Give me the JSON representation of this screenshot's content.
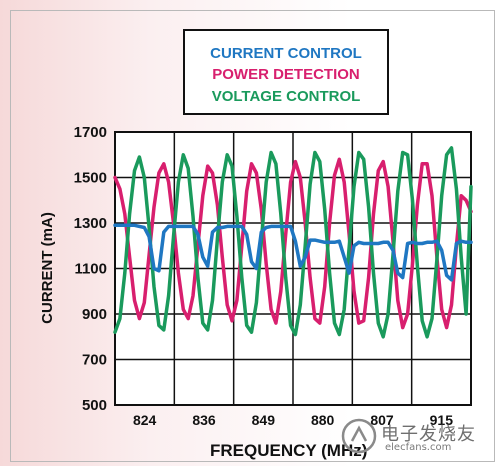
{
  "chart_data": {
    "type": "line",
    "title": "",
    "xlabel": "FREQUENCY (MHz)",
    "ylabel": "CURRENT (mA)",
    "ylim": [
      500,
      1700
    ],
    "yticks": [
      500,
      700,
      900,
      1100,
      1300,
      1500,
      1700
    ],
    "xtick_labels": [
      "824",
      "836",
      "849",
      "880",
      "807",
      "915"
    ],
    "grid": true,
    "legend_position": "top-center",
    "series": [
      {
        "name": "CURRENT CONTROL",
        "color": "#1f77c2",
        "y": [
          1290,
          1290,
          1290,
          1290,
          1290,
          1285,
          1280,
          1240,
          1100,
          1090,
          1260,
          1285,
          1285,
          1285,
          1285,
          1285,
          1285,
          1250,
          1150,
          1110,
          1260,
          1280,
          1280,
          1285,
          1285,
          1285,
          1285,
          1250,
          1130,
          1100,
          1260,
          1280,
          1285,
          1285,
          1285,
          1285,
          1285,
          1220,
          1110,
          1150,
          1225,
          1225,
          1220,
          1215,
          1215,
          1215,
          1220,
          1150,
          1080,
          1200,
          1215,
          1210,
          1210,
          1210,
          1210,
          1215,
          1215,
          1180,
          1080,
          1060,
          1210,
          1215,
          1210,
          1210,
          1215,
          1215,
          1220,
          1180,
          1070,
          1050,
          1210,
          1220,
          1215,
          1215
        ]
      },
      {
        "name": "POWER DETECTION",
        "color": "#d81f6e",
        "y": [
          1500,
          1450,
          1340,
          1150,
          960,
          880,
          950,
          1160,
          1370,
          1520,
          1560,
          1480,
          1300,
          1080,
          920,
          880,
          980,
          1200,
          1420,
          1550,
          1520,
          1380,
          1150,
          940,
          870,
          960,
          1200,
          1440,
          1560,
          1520,
          1360,
          1120,
          920,
          860,
          1000,
          1250,
          1480,
          1570,
          1500,
          1300,
          1060,
          880,
          860,
          1020,
          1300,
          1510,
          1580,
          1480,
          1250,
          1000,
          860,
          870,
          1060,
          1340,
          1530,
          1570,
          1460,
          1220,
          960,
          840,
          900,
          1120,
          1380,
          1560,
          1560,
          1420,
          1150,
          920,
          840,
          940,
          1200,
          1420,
          1400,
          1350
        ]
      },
      {
        "name": "VOLTAGE CONTROL",
        "color": "#1a9a5c",
        "y": [
          820,
          880,
          1080,
          1340,
          1530,
          1590,
          1500,
          1280,
          1020,
          850,
          830,
          980,
          1240,
          1480,
          1600,
          1540,
          1330,
          1060,
          860,
          830,
          960,
          1230,
          1480,
          1600,
          1550,
          1330,
          1060,
          850,
          820,
          950,
          1220,
          1480,
          1610,
          1560,
          1340,
          1060,
          850,
          810,
          940,
          1200,
          1470,
          1610,
          1570,
          1360,
          1080,
          860,
          810,
          920,
          1190,
          1460,
          1610,
          1580,
          1370,
          1080,
          860,
          800,
          900,
          1160,
          1440,
          1610,
          1600,
          1400,
          1110,
          870,
          800,
          880,
          1140,
          1420,
          1600,
          1630,
          1450,
          1150,
          900,
          1460
        ]
      }
    ]
  },
  "watermark": {
    "brand": "电子发烧友",
    "site": "elecfans.com"
  }
}
